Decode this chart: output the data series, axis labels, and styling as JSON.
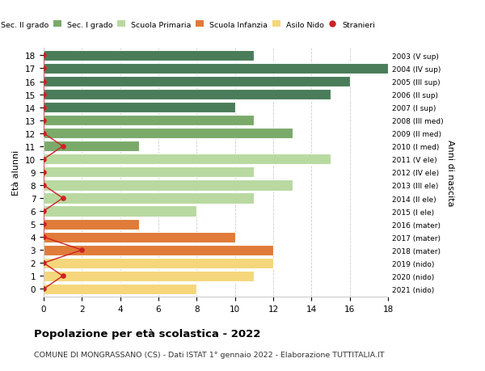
{
  "ages": [
    18,
    17,
    16,
    15,
    14,
    13,
    12,
    11,
    10,
    9,
    8,
    7,
    6,
    5,
    4,
    3,
    2,
    1,
    0
  ],
  "right_labels": [
    "2003 (V sup)",
    "2004 (IV sup)",
    "2005 (III sup)",
    "2006 (II sup)",
    "2007 (I sup)",
    "2008 (III med)",
    "2009 (II med)",
    "2010 (I med)",
    "2011 (V ele)",
    "2012 (IV ele)",
    "2013 (III ele)",
    "2014 (II ele)",
    "2015 (I ele)",
    "2016 (mater)",
    "2017 (mater)",
    "2018 (mater)",
    "2019 (nido)",
    "2020 (nido)",
    "2021 (nido)"
  ],
  "bar_values": [
    11,
    18,
    16,
    15,
    10,
    11,
    13,
    5,
    15,
    11,
    13,
    11,
    8,
    5,
    10,
    12,
    12,
    11,
    8
  ],
  "bar_colors": [
    "#4a7c59",
    "#4a7c59",
    "#4a7c59",
    "#4a7c59",
    "#4a7c59",
    "#7aaa6a",
    "#7aaa6a",
    "#7aaa6a",
    "#b8d9a0",
    "#b8d9a0",
    "#b8d9a0",
    "#b8d9a0",
    "#b8d9a0",
    "#e07b39",
    "#e07b39",
    "#e07b39",
    "#f5d67a",
    "#f5d67a",
    "#f5d67a"
  ],
  "stranieri_values": [
    0,
    0,
    0,
    0,
    0,
    0,
    0,
    1,
    0,
    0,
    0,
    1,
    0,
    0,
    0,
    2,
    0,
    1,
    0
  ],
  "legend_labels": [
    "Sec. II grado",
    "Sec. I grado",
    "Scuola Primaria",
    "Scuola Infanzia",
    "Asilo Nido",
    "Stranieri"
  ],
  "legend_colors": [
    "#4a7c59",
    "#7aaa6a",
    "#b8d9a0",
    "#e07b39",
    "#f5d67a",
    "#cc2222"
  ],
  "title": "Popolazione per età scolastica - 2022",
  "subtitle": "COMUNE DI MONGRASSANO (CS) - Dati ISTAT 1° gennaio 2022 - Elaborazione TUTTITALIA.IT",
  "ylabel": "Età alunni",
  "right_ylabel": "Anni di nascita",
  "xlim": [
    0,
    18
  ],
  "xticks": [
    0,
    2,
    4,
    6,
    8,
    10,
    12,
    14,
    16,
    18
  ],
  "background_color": "#ffffff",
  "grid_color": "#cccccc",
  "bar_height": 0.82
}
